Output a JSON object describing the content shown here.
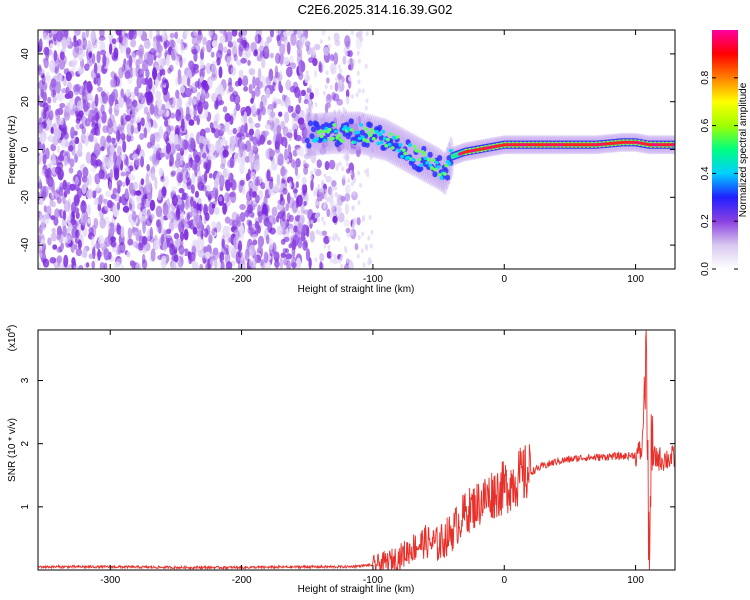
{
  "title": "C2E6.2025.314.16.39.G02",
  "chart_data": [
    {
      "type": "heatmap",
      "name": "spectrogram",
      "xlabel": "Height of straight line (km)",
      "ylabel": "Frequency (Hz)",
      "xlim": [
        -355,
        130
      ],
      "ylim": [
        -50,
        50
      ],
      "xticks": [
        -300,
        -200,
        -100,
        0,
        100
      ],
      "yticks": [
        -40,
        -20,
        0,
        20,
        40
      ],
      "ridge": {
        "x": [
          -150,
          -130,
          -110,
          -90,
          -80,
          -70,
          -60,
          -50,
          -45,
          -40,
          -30,
          -20,
          -10,
          0,
          10,
          30,
          50,
          70,
          90,
          100,
          110,
          130
        ],
        "y": [
          6,
          7,
          7,
          4,
          1,
          -2,
          -5,
          -8,
          -10,
          -3,
          -1,
          0,
          1,
          2,
          2,
          2,
          2,
          2,
          3,
          3,
          2,
          2
        ]
      },
      "colorbar": {
        "label": "Normalized spectral amplitude",
        "range": [
          0.0,
          1.0
        ],
        "ticks": [
          0.0,
          0.2,
          0.4,
          0.6,
          0.8
        ],
        "tick_labels": [
          "0.0",
          "0.2",
          "0.4",
          "0.6",
          "0.8"
        ],
        "colors": [
          "#ffffff",
          "#d8c8f0",
          "#8a40e0",
          "#2020ff",
          "#00d0ff",
          "#00ff80",
          "#a0ff00",
          "#ffff00",
          "#ff8000",
          "#ff0000",
          "#ff00a0"
        ]
      }
    },
    {
      "type": "line",
      "name": "snr",
      "xlabel": "Height of straight line (km)",
      "ylabel": "SNR (10 * v/v)",
      "scale_label": "(x10",
      "scale_exp": "4",
      "xlim": [
        -355,
        130
      ],
      "ylim": [
        0,
        3.8
      ],
      "xticks": [
        -300,
        -200,
        -100,
        0,
        100
      ],
      "yticks": [
        1,
        2,
        3
      ],
      "color": "#e8302a",
      "series": [
        {
          "name": "SNR",
          "x": [
            -355,
            -300,
            -250,
            -200,
            -150,
            -120,
            -100,
            -90,
            -80,
            -70,
            -60,
            -50,
            -40,
            -30,
            -20,
            -10,
            0,
            10,
            20,
            30,
            40,
            50,
            60,
            70,
            80,
            90,
            100,
            105,
            108,
            110,
            112,
            115,
            120,
            130
          ],
          "y": [
            0.05,
            0.05,
            0.04,
            0.04,
            0.05,
            0.05,
            0.08,
            0.12,
            0.2,
            0.35,
            0.45,
            0.4,
            0.6,
            0.9,
            1.05,
            1.2,
            1.3,
            1.45,
            1.55,
            1.65,
            1.72,
            1.75,
            1.78,
            1.78,
            1.8,
            1.8,
            1.82,
            1.9,
            3.7,
            0.2,
            1.7,
            1.78,
            1.75,
            1.78
          ]
        }
      ]
    }
  ]
}
